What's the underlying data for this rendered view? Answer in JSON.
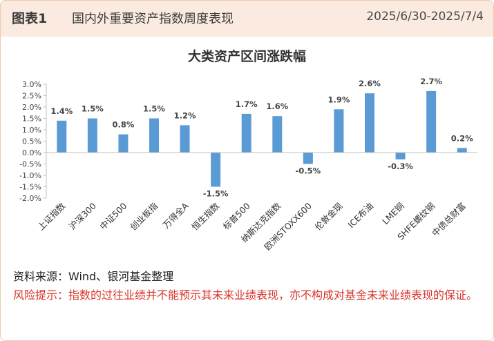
{
  "header": {
    "figure_label": "图表1",
    "title": "国内外重要资产指数周度表现",
    "date_range": "2025/6/30-2025/7/4"
  },
  "chart_data": {
    "type": "bar",
    "title": "大类资产区间涨跌幅",
    "categories": [
      "上证指数",
      "沪深300",
      "中证500",
      "创业板指",
      "万得全A",
      "恒生指数",
      "标普500",
      "纳斯达克指数",
      "欧洲STOXX600",
      "伦敦金现",
      "ICE布油",
      "LME铜",
      "SHFE螺纹钢",
      "中债总财富"
    ],
    "values": [
      1.4,
      1.5,
      0.8,
      1.5,
      1.2,
      -1.5,
      1.7,
      1.6,
      -0.5,
      1.9,
      2.6,
      -0.3,
      2.7,
      0.2
    ],
    "value_labels": [
      "1.4%",
      "1.5%",
      "0.8%",
      "1.5%",
      "1.2%",
      "-1.5%",
      "1.7%",
      "1.6%",
      "-0.5%",
      "1.9%",
      "2.6%",
      "-0.3%",
      "2.7%",
      "0.2%"
    ],
    "yticks": [
      "3.0%",
      "2.5%",
      "2.0%",
      "1.5%",
      "1.0%",
      "0.5%",
      "0.0%",
      "-0.5%",
      "-1.0%",
      "-1.5%",
      "-2.0%"
    ],
    "ylim": [
      -2.0,
      3.0
    ],
    "bar_color": "#5b9bd5",
    "grid": false,
    "legend": false
  },
  "footer": {
    "source": "资料来源：Wind、银河基金整理",
    "risk": "风险提示：指数的过往业绩并不能预示其未来业绩表现，亦不构成对基金未来业绩表现的保证。"
  },
  "colors": {
    "header_bg": "#fbeadf",
    "border": "#f0c9a6",
    "risk_text": "#d9342b"
  }
}
